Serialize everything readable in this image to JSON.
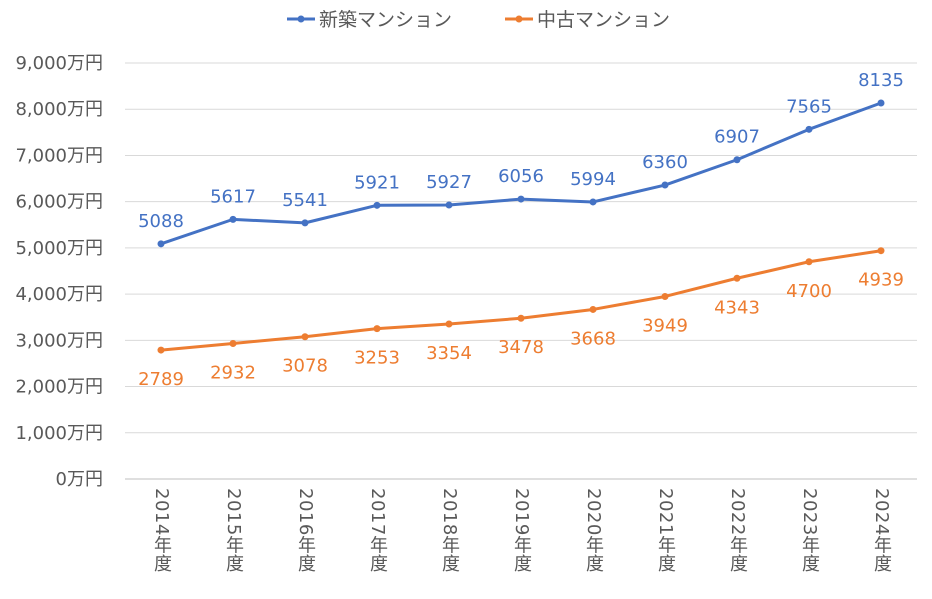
{
  "chart_data": {
    "type": "line",
    "title": "",
    "xlabel": "",
    "ylabel": "",
    "categories": [
      "2014年度",
      "2015年度",
      "2016年度",
      "2017年度",
      "2018年度",
      "2019年度",
      "2020年度",
      "2021年度",
      "2022年度",
      "2023年度",
      "2024年度"
    ],
    "ylim": [
      0,
      9000
    ],
    "yticks": [
      0,
      1000,
      2000,
      3000,
      4000,
      5000,
      6000,
      7000,
      8000,
      9000
    ],
    "ytick_labels": [
      "0万円",
      "1,000万円",
      "2,000万円",
      "3,000万円",
      "4,000万円",
      "5,000万円",
      "6,000万円",
      "7,000万円",
      "8,000万円",
      "9,000万円"
    ],
    "grid": true,
    "legend_position": "top",
    "series": [
      {
        "name": "新築マンション",
        "color": "#4472C4",
        "label_position": "above",
        "values": [
          5088,
          5617,
          5541,
          5921,
          5927,
          6056,
          5994,
          6360,
          6907,
          7565,
          8135
        ]
      },
      {
        "name": "中古マンション",
        "color": "#ED7D31",
        "label_position": "below",
        "values": [
          2789,
          2932,
          3078,
          3253,
          3354,
          3478,
          3668,
          3949,
          4343,
          4700,
          4939
        ]
      }
    ]
  }
}
